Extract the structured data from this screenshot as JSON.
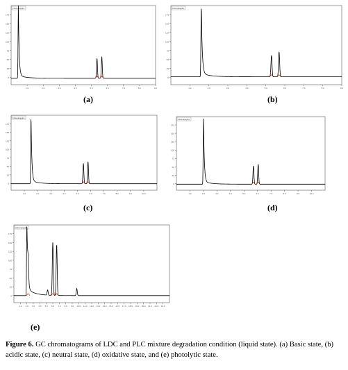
{
  "figure": {
    "caption_label": "Figure 6.",
    "caption_text": " GC chromatograms of LDC and PLC mixture degradation condition (liquid state). (a) Basic state, (b) acidic state, (c) neutral state, (d) oxidative state, and (e) photolytic state."
  },
  "colors": {
    "trace": "#000000",
    "integration": "#cc0000",
    "frame": "#555555"
  },
  "chart_data": [
    {
      "type": "line",
      "label": "(a)",
      "trace_name": "Chromatogram",
      "xlim": [
        0,
        9
      ],
      "ylim": [
        -20,
        200
      ],
      "x_ticks": [
        1.0,
        2.0,
        3.0,
        4.0,
        5.0,
        6.0,
        7.0,
        8.0,
        9.0
      ],
      "y_ticks": [
        0,
        25,
        50,
        75,
        100,
        125,
        150,
        175
      ],
      "baseline": -2,
      "solvent": {
        "x": 0.45,
        "h": 200,
        "tail": 8
      },
      "peaks": [
        {
          "x": 5.35,
          "h": 55
        },
        {
          "x": 5.65,
          "h": 60
        }
      ]
    },
    {
      "type": "line",
      "label": "(b)",
      "trace_name": "Chromatogram",
      "xlim": [
        0,
        9
      ],
      "ylim": [
        -20,
        200
      ],
      "x_ticks": [
        1.0,
        2.0,
        3.0,
        4.0,
        5.0,
        6.0,
        7.0,
        8.0,
        9.0
      ],
      "y_ticks": [
        0,
        25,
        50,
        75,
        100,
        125,
        150,
        175
      ],
      "baseline": 2,
      "solvent": {
        "x": 1.6,
        "h": 200,
        "tail": 10
      },
      "peaks": [
        {
          "x": 5.3,
          "h": 60
        },
        {
          "x": 5.7,
          "h": 70
        }
      ]
    },
    {
      "type": "line",
      "label": "(c)",
      "trace_name": "Chromatogram",
      "xlim": [
        0,
        11
      ],
      "ylim": [
        -20,
        200
      ],
      "x_ticks": [
        1.0,
        2.0,
        3.0,
        4.0,
        5.0,
        6.0,
        7.0,
        8.0,
        9.0,
        10.0
      ],
      "y_ticks": [
        0,
        25,
        50,
        75,
        100,
        125,
        150,
        175
      ],
      "baseline": -1,
      "solvent": {
        "x": 1.5,
        "h": 200,
        "tail": 9
      },
      "peaks": [
        {
          "x": 5.45,
          "h": 60
        },
        {
          "x": 5.8,
          "h": 65
        }
      ]
    },
    {
      "type": "line",
      "label": "(d)",
      "trace_name": "Chromatogram",
      "xlim": [
        0,
        11
      ],
      "ylim": [
        -20,
        200
      ],
      "x_ticks": [
        1.0,
        2.0,
        3.0,
        4.0,
        5.0,
        6.0,
        7.0,
        8.0,
        9.0,
        10.0
      ],
      "y_ticks": [
        0,
        25,
        50,
        75,
        100,
        125,
        150,
        175
      ],
      "baseline": -2,
      "solvent": {
        "x": 2.0,
        "h": 200,
        "tail": 8
      },
      "peaks": [
        {
          "x": 5.7,
          "h": 55
        },
        {
          "x": 6.05,
          "h": 60
        }
      ]
    },
    {
      "type": "line",
      "label": "(e)",
      "trace_name": "Chromatogram",
      "xlim": [
        0,
        24
      ],
      "ylim": [
        -20,
        200
      ],
      "x_ticks": [
        1.0,
        2.0,
        3.0,
        4.0,
        5.0,
        6.0,
        7.0,
        8.0,
        9.0,
        10.0,
        11.0,
        12.0,
        13.0,
        14.0,
        15.0,
        16.0,
        17.0,
        18.0,
        19.0,
        20.0,
        21.0,
        22.0,
        23.0
      ],
      "y_ticks": [
        0,
        25,
        50,
        75,
        100,
        125,
        150,
        175
      ],
      "baseline": 0,
      "solvent": {
        "x": 2.0,
        "h": 200,
        "tail": 20
      },
      "peaks": [
        {
          "x": 2.2,
          "h": 55
        },
        {
          "x": 5.2,
          "h": 15
        },
        {
          "x": 6.0,
          "h": 150
        },
        {
          "x": 6.6,
          "h": 145
        },
        {
          "x": 9.7,
          "h": 20
        }
      ]
    }
  ]
}
